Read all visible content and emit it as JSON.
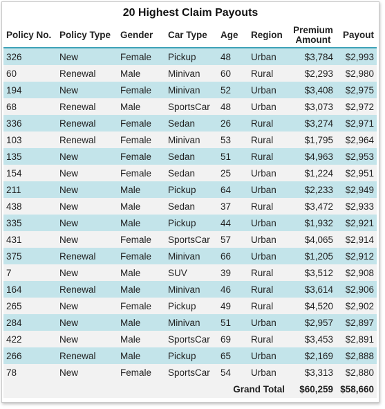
{
  "title": "20 Highest Claim Payouts",
  "columns": [
    "Policy No.",
    "Policy Type",
    "Gender",
    "Car Type",
    "Age",
    "Region",
    "Premium Amount",
    "Payout"
  ],
  "rows": [
    [
      "326",
      "New",
      "Female",
      "Pickup",
      "48",
      "Urban",
      "$3,784",
      "$2,993"
    ],
    [
      "60",
      "Renewal",
      "Male",
      "Minivan",
      "60",
      "Rural",
      "$2,293",
      "$2,980"
    ],
    [
      "194",
      "New",
      "Female",
      "Minivan",
      "52",
      "Urban",
      "$3,408",
      "$2,975"
    ],
    [
      "68",
      "Renewal",
      "Male",
      "SportsCar",
      "48",
      "Urban",
      "$3,073",
      "$2,972"
    ],
    [
      "336",
      "Renewal",
      "Female",
      "Sedan",
      "26",
      "Rural",
      "$3,274",
      "$2,971"
    ],
    [
      "103",
      "Renewal",
      "Female",
      "Minivan",
      "53",
      "Rural",
      "$1,795",
      "$2,964"
    ],
    [
      "135",
      "New",
      "Female",
      "Sedan",
      "51",
      "Rural",
      "$4,963",
      "$2,953"
    ],
    [
      "154",
      "New",
      "Female",
      "Sedan",
      "25",
      "Urban",
      "$1,224",
      "$2,951"
    ],
    [
      "211",
      "New",
      "Male",
      "Pickup",
      "64",
      "Urban",
      "$2,233",
      "$2,949"
    ],
    [
      "438",
      "New",
      "Male",
      "Sedan",
      "37",
      "Rural",
      "$3,472",
      "$2,933"
    ],
    [
      "335",
      "New",
      "Male",
      "Pickup",
      "44",
      "Urban",
      "$1,932",
      "$2,921"
    ],
    [
      "431",
      "New",
      "Female",
      "SportsCar",
      "57",
      "Urban",
      "$4,065",
      "$2,914"
    ],
    [
      "375",
      "Renewal",
      "Female",
      "Minivan",
      "66",
      "Urban",
      "$1,205",
      "$2,912"
    ],
    [
      "7",
      "New",
      "Male",
      "SUV",
      "39",
      "Rural",
      "$3,512",
      "$2,908"
    ],
    [
      "164",
      "Renewal",
      "Male",
      "Minivan",
      "46",
      "Rural",
      "$3,614",
      "$2,906"
    ],
    [
      "265",
      "New",
      "Female",
      "Pickup",
      "49",
      "Rural",
      "$4,520",
      "$2,902"
    ],
    [
      "284",
      "New",
      "Male",
      "Minivan",
      "51",
      "Urban",
      "$2,957",
      "$2,897"
    ],
    [
      "422",
      "New",
      "Male",
      "SportsCar",
      "69",
      "Rural",
      "$3,453",
      "$2,891"
    ],
    [
      "266",
      "Renewal",
      "Male",
      "Pickup",
      "65",
      "Urban",
      "$2,169",
      "$2,888"
    ],
    [
      "78",
      "New",
      "Female",
      "SportsCar",
      "54",
      "Urban",
      "$3,313",
      "$2,880"
    ]
  ],
  "totals": {
    "label": "Grand Total",
    "premium": "$60,259",
    "payout": "$58,660"
  },
  "colors": {
    "band": "#c3e4ea",
    "alt": "#f2f2f2",
    "rule": "#3fa2b8"
  }
}
